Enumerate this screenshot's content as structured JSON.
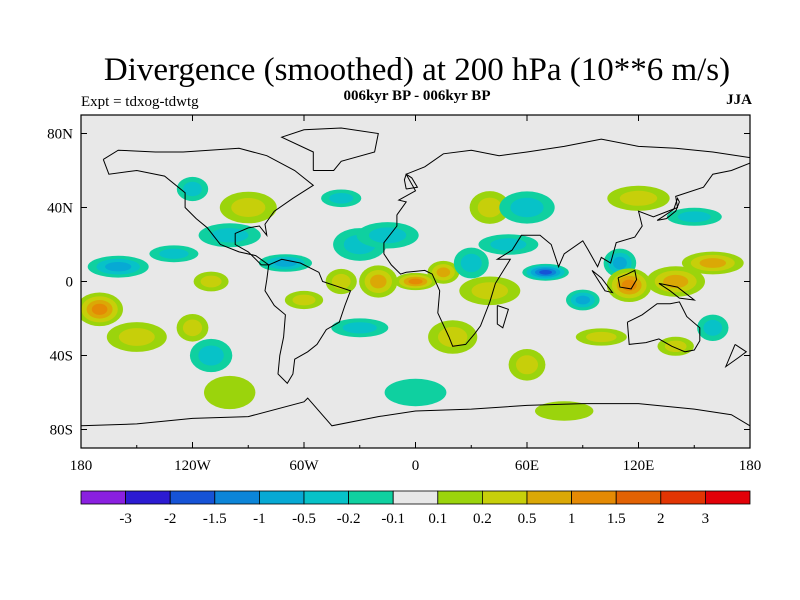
{
  "title": "Divergence (smoothed) at 200 hPa (10**6 m/s)",
  "subtitle": "006kyr BP - 006kyr BP",
  "experiment": "Expt = tdxog-tdwtg",
  "season": "JJA",
  "map": {
    "x_ticks": [
      "180",
      "120W",
      "60W",
      "0",
      "60E",
      "120E",
      "180"
    ],
    "y_ticks": [
      "80N",
      "40N",
      "0",
      "40S",
      "80S"
    ],
    "background_color": "#e8e8e8",
    "coastline_color": "#000000"
  },
  "colorbar": {
    "labels": [
      "-3",
      "-2",
      "-1.5",
      "-1",
      "-0.5",
      "-0.2",
      "-0.1",
      "0.1",
      "0.2",
      "0.5",
      "1",
      "1.5",
      "2",
      "3"
    ],
    "colors": [
      "#8a20e0",
      "#2c1bd2",
      "#1653d6",
      "#0c85d8",
      "#07a9d4",
      "#07c2c8",
      "#0fd0a0",
      "#e8e8e8",
      "#9bd40c",
      "#c7cf0a",
      "#dba806",
      "#e48a04",
      "#e26203",
      "#e23503",
      "#e20008"
    ]
  },
  "chart_data": {
    "type": "heatmap",
    "title": "Divergence (smoothed) at 200 hPa (10**6 m/s)",
    "subtitle": "006kyr BP - 006kyr BP",
    "xlabel": "",
    "ylabel": "",
    "x_range": [
      -180,
      180
    ],
    "y_range": [
      -90,
      90
    ],
    "levels": [
      -3,
      -2,
      -1.5,
      -1,
      -0.5,
      -0.2,
      -0.1,
      0.1,
      0.2,
      0.5,
      1,
      1.5,
      2,
      3
    ],
    "anomaly_centers": [
      {
        "lon": -170,
        "lat": -15,
        "value": 1.5
      },
      {
        "lon": -150,
        "lat": -30,
        "value": 0.6
      },
      {
        "lon": -160,
        "lat": 8,
        "value": -0.8
      },
      {
        "lon": -130,
        "lat": 15,
        "value": -0.6
      },
      {
        "lon": -110,
        "lat": 0,
        "value": 0.6
      },
      {
        "lon": -120,
        "lat": -25,
        "value": 0.5
      },
      {
        "lon": -110,
        "lat": -40,
        "value": -0.5
      },
      {
        "lon": -90,
        "lat": 40,
        "value": 0.6
      },
      {
        "lon": -100,
        "lat": 25,
        "value": -0.4
      },
      {
        "lon": -70,
        "lat": 10,
        "value": -0.9
      },
      {
        "lon": -60,
        "lat": -10,
        "value": 0.6
      },
      {
        "lon": -40,
        "lat": 0,
        "value": 0.5
      },
      {
        "lon": -20,
        "lat": 0,
        "value": 0.8
      },
      {
        "lon": -30,
        "lat": 20,
        "value": -0.5
      },
      {
        "lon": -15,
        "lat": 25,
        "value": -0.4
      },
      {
        "lon": -30,
        "lat": -25,
        "value": -0.6
      },
      {
        "lon": 0,
        "lat": 0,
        "value": 1.3
      },
      {
        "lon": 15,
        "lat": 5,
        "value": 0.8
      },
      {
        "lon": 30,
        "lat": 10,
        "value": -0.5
      },
      {
        "lon": 20,
        "lat": -30,
        "value": 0.6
      },
      {
        "lon": 40,
        "lat": -5,
        "value": 0.5
      },
      {
        "lon": 50,
        "lat": 20,
        "value": -0.4
      },
      {
        "lon": 70,
        "lat": 5,
        "value": -1.8
      },
      {
        "lon": 90,
        "lat": -10,
        "value": -0.9
      },
      {
        "lon": 110,
        "lat": 10,
        "value": -0.8
      },
      {
        "lon": 115,
        "lat": -2,
        "value": 1.5
      },
      {
        "lon": 140,
        "lat": 0,
        "value": 1.0
      },
      {
        "lon": 160,
        "lat": 10,
        "value": 0.8
      },
      {
        "lon": 100,
        "lat": -30,
        "value": 0.6
      },
      {
        "lon": 140,
        "lat": -35,
        "value": 0.6
      },
      {
        "lon": 160,
        "lat": -25,
        "value": -0.6
      },
      {
        "lon": 40,
        "lat": 40,
        "value": 0.5
      },
      {
        "lon": 60,
        "lat": 40,
        "value": -0.5
      },
      {
        "lon": 120,
        "lat": 45,
        "value": 0.6
      },
      {
        "lon": 150,
        "lat": 35,
        "value": -0.5
      },
      {
        "lon": -40,
        "lat": 45,
        "value": -0.5
      },
      {
        "lon": -120,
        "lat": 50,
        "value": -0.4
      },
      {
        "lon": 60,
        "lat": -45,
        "value": 0.4
      },
      {
        "lon": -100,
        "lat": -60,
        "value": 0.3
      },
      {
        "lon": 0,
        "lat": -60,
        "value": -0.3
      },
      {
        "lon": 80,
        "lat": -70,
        "value": 0.3
      }
    ]
  }
}
